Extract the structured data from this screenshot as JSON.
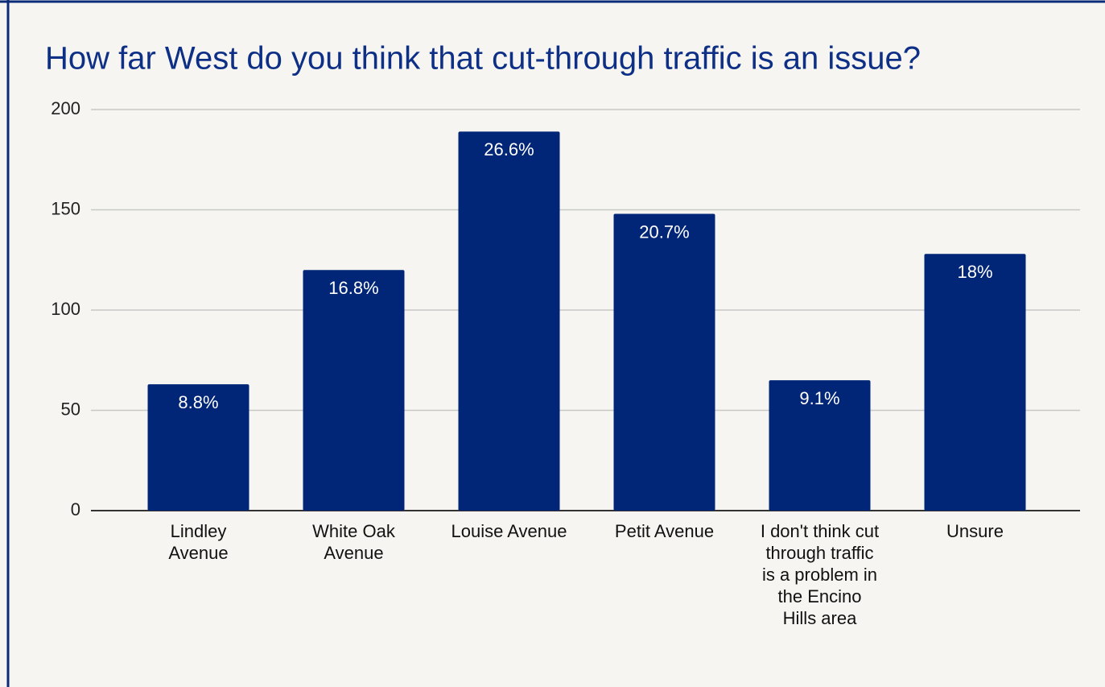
{
  "chart_data": {
    "type": "bar",
    "title": "How far West do you think that cut-through traffic is an issue?",
    "categories": [
      "Lindley Avenue",
      "White Oak Avenue",
      "Louise Avenue",
      "Petit Avenue",
      "I don't think cut through traffic is a problem in the Encino Hills area",
      "Unsure"
    ],
    "values": [
      63,
      120,
      189,
      148,
      65,
      128
    ],
    "percent_labels": [
      "8.8%",
      "16.8%",
      "26.6%",
      "20.7%",
      "9.1%",
      "18%"
    ],
    "color": "#012677",
    "ylim": [
      0,
      200
    ],
    "yticks": [
      0,
      50,
      100,
      150,
      200
    ],
    "grid": true
  }
}
